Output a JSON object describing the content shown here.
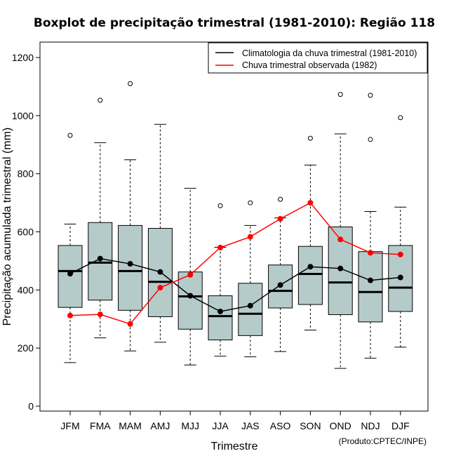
{
  "chart_data": {
    "type": "boxplot",
    "title": "Boxplot de precipitação trimestral (1981-2010): Região 118",
    "xlabel": "Trimestre",
    "ylabel": "Precipitação acumulada trimestral (mm)",
    "ylim": [
      0,
      1250
    ],
    "yticks": [
      0,
      200,
      400,
      600,
      800,
      1000,
      1200
    ],
    "categories": [
      "JFM",
      "FMA",
      "MAM",
      "AMJ",
      "MJJ",
      "JJA",
      "JAS",
      "ASO",
      "SON",
      "OND",
      "NDJ",
      "DJF"
    ],
    "boxes": [
      {
        "whisker_low": 150,
        "q1": 340,
        "median": 465,
        "q3": 553,
        "whisker_high": 627,
        "outliers": [
          932
        ]
      },
      {
        "whisker_low": 235,
        "q1": 365,
        "median": 494,
        "q3": 632,
        "whisker_high": 907,
        "outliers": [
          1053
        ]
      },
      {
        "whisker_low": 190,
        "q1": 330,
        "median": 465,
        "q3": 622,
        "whisker_high": 848,
        "outliers": [
          1110
        ]
      },
      {
        "whisker_low": 220,
        "q1": 308,
        "median": 428,
        "q3": 612,
        "whisker_high": 970,
        "outliers": []
      },
      {
        "whisker_low": 142,
        "q1": 265,
        "median": 378,
        "q3": 462,
        "whisker_high": 750,
        "outliers": []
      },
      {
        "whisker_low": 172,
        "q1": 228,
        "median": 310,
        "q3": 380,
        "whisker_high": 547,
        "outliers": [
          690
        ]
      },
      {
        "whisker_low": 170,
        "q1": 243,
        "median": 318,
        "q3": 423,
        "whisker_high": 622,
        "outliers": [
          700
        ]
      },
      {
        "whisker_low": 188,
        "q1": 338,
        "median": 397,
        "q3": 486,
        "whisker_high": 648,
        "outliers": [
          712
        ]
      },
      {
        "whisker_low": 262,
        "q1": 350,
        "median": 455,
        "q3": 550,
        "whisker_high": 830,
        "outliers": [
          922
        ]
      },
      {
        "whisker_low": 130,
        "q1": 315,
        "median": 426,
        "q3": 617,
        "whisker_high": 937,
        "outliers": [
          1073
        ]
      },
      {
        "whisker_low": 165,
        "q1": 290,
        "median": 393,
        "q3": 532,
        "whisker_high": 670,
        "outliers": [
          1070,
          918
        ]
      },
      {
        "whisker_low": 203,
        "q1": 326,
        "median": 408,
        "q3": 553,
        "whisker_high": 685,
        "outliers": [
          993
        ]
      }
    ],
    "series": [
      {
        "name": "Climatologia da chuva trimestral (1981-2010)",
        "color": "#000000",
        "values": [
          456,
          508,
          490,
          462,
          380,
          326,
          346,
          417,
          480,
          474,
          433,
          443
        ]
      },
      {
        "name": "Chuva trimestral observada (1982)",
        "color": "#ff0000",
        "values": [
          312,
          316,
          283,
          408,
          452,
          546,
          583,
          645,
          700,
          574,
          528,
          522
        ]
      }
    ],
    "legend_position": "top-right",
    "box_fill": "#b5cbca"
  },
  "credit": "(Produto:CPTEC/INPE)"
}
